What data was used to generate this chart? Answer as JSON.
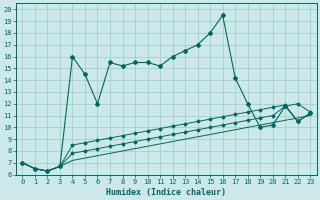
{
  "xlabel": "Humidex (Indice chaleur)",
  "bg_color": "#cce8e8",
  "grid_color": "#99cccc",
  "line_color": "#006666",
  "xlim": [
    -0.5,
    23.5
  ],
  "ylim": [
    6,
    20.5
  ],
  "xticks": [
    0,
    1,
    2,
    3,
    4,
    5,
    6,
    7,
    8,
    9,
    10,
    11,
    12,
    13,
    14,
    15,
    16,
    17,
    18,
    19,
    20,
    21,
    22,
    23
  ],
  "yticks": [
    6,
    7,
    8,
    9,
    10,
    11,
    12,
    13,
    14,
    15,
    16,
    17,
    18,
    19,
    20
  ],
  "s1_x": [
    0,
    1,
    2,
    3,
    4,
    5,
    6,
    7,
    8,
    9,
    10,
    11,
    12,
    13,
    14,
    15,
    16,
    17,
    18,
    19,
    20,
    21,
    22,
    23
  ],
  "s1_y": [
    7.0,
    6.5,
    6.3,
    6.7,
    16.0,
    14.5,
    12.0,
    15.5,
    15.2,
    15.5,
    15.5,
    15.2,
    16.0,
    16.5,
    17.0,
    18.0,
    19.5,
    14.2,
    12.0,
    10.0,
    10.2,
    11.8,
    10.5,
    11.2
  ],
  "s2_x": [
    0,
    1,
    2,
    3,
    4,
    5,
    6,
    7,
    8,
    9,
    10,
    11,
    12,
    13,
    14,
    15,
    16,
    17,
    18,
    19,
    20,
    21,
    22,
    23
  ],
  "s2_y": [
    7.0,
    6.5,
    6.3,
    6.7,
    8.5,
    8.7,
    8.9,
    9.1,
    9.3,
    9.5,
    9.7,
    9.9,
    10.1,
    10.3,
    10.5,
    10.7,
    10.9,
    11.1,
    11.3,
    11.5,
    11.7,
    11.9,
    10.5,
    11.2
  ],
  "s3_x": [
    0,
    1,
    2,
    3,
    4,
    5,
    6,
    7,
    8,
    9,
    10,
    11,
    12,
    13,
    14,
    15,
    16,
    17,
    18,
    19,
    20,
    21,
    22,
    23
  ],
  "s3_y": [
    7.0,
    6.5,
    6.3,
    6.7,
    7.8,
    8.0,
    8.2,
    8.4,
    8.6,
    8.8,
    9.0,
    9.2,
    9.4,
    9.6,
    9.8,
    10.0,
    10.2,
    10.4,
    10.6,
    10.8,
    11.0,
    11.8,
    12.0,
    11.3
  ],
  "s4_x": [
    0,
    1,
    2,
    3,
    4,
    5,
    6,
    7,
    8,
    9,
    10,
    11,
    12,
    13,
    14,
    15,
    16,
    17,
    18,
    19,
    20,
    21,
    22,
    23
  ],
  "s4_y": [
    7.0,
    6.5,
    6.3,
    6.7,
    7.2,
    7.4,
    7.6,
    7.8,
    8.0,
    8.2,
    8.4,
    8.6,
    8.8,
    9.0,
    9.2,
    9.4,
    9.6,
    9.8,
    10.0,
    10.2,
    10.4,
    10.6,
    10.8,
    11.0
  ]
}
